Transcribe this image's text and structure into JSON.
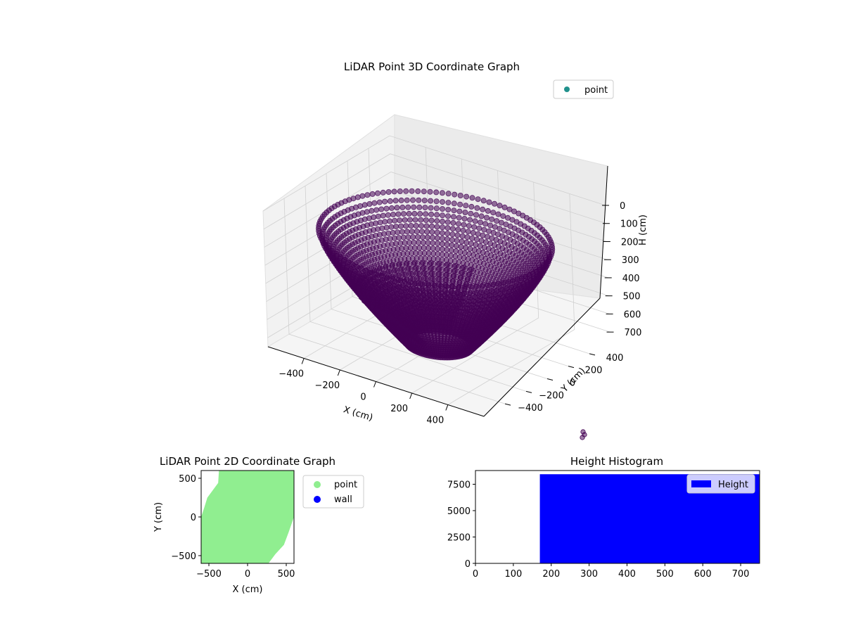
{
  "chart_data": [
    {
      "type": "scatter3d",
      "title": "LiDAR Point 3D Coordinate Graph",
      "xlabel": "X (cm)",
      "ylabel": "Y (cm)",
      "zlabel": "H (cm)",
      "xlim": [
        -600,
        600
      ],
      "ylim": [
        -600,
        600
      ],
      "zlim": [
        0,
        750
      ],
      "z_inverted": true,
      "xticks": [
        "−400",
        "−200",
        "0",
        "200",
        "400"
      ],
      "yticks": [
        "−400",
        "−200",
        "0",
        "200",
        "400"
      ],
      "zticks": [
        "0",
        "100",
        "200",
        "300",
        "400",
        "500",
        "600",
        "700"
      ],
      "grid": true,
      "legend": {
        "position": "upper-right",
        "entries": [
          {
            "label": "point",
            "color": "#21918c"
          }
        ]
      },
      "point_color": "#440154",
      "series": [
        {
          "name": "point",
          "shape": "bowl of arcs",
          "radius_range": [
            160,
            560
          ],
          "height_range": [
            170,
            750
          ]
        }
      ]
    },
    {
      "type": "scatter",
      "title": "LiDAR Point 2D Coordinate Graph",
      "xlabel": "X (cm)",
      "ylabel": "Y (cm)",
      "xlim": [
        -600,
        600
      ],
      "ylim": [
        -600,
        600
      ],
      "xticks": [
        "−500",
        "0",
        "500"
      ],
      "yticks": [
        "−500",
        "0",
        "500"
      ],
      "legend": {
        "position": "outside-right",
        "entries": [
          {
            "label": "point",
            "color": "#90ee90"
          },
          {
            "label": "wall",
            "color": "#0000ff"
          }
        ]
      },
      "region": [
        [
          -370,
          600
        ],
        [
          600,
          600
        ],
        [
          600,
          0
        ],
        [
          530,
          -200
        ],
        [
          470,
          -360
        ],
        [
          360,
          -480
        ],
        [
          270,
          -600
        ],
        [
          -600,
          -600
        ],
        [
          -600,
          0
        ],
        [
          -560,
          120
        ],
        [
          -520,
          250
        ],
        [
          -380,
          440
        ]
      ]
    },
    {
      "type": "bar",
      "title": "Height Histogram",
      "xlim": [
        0,
        750
      ],
      "ylim": [
        0,
        8800
      ],
      "xticks": [
        "0",
        "100",
        "200",
        "300",
        "400",
        "500",
        "600",
        "700"
      ],
      "yticks": [
        "0",
        "2500",
        "5000",
        "7500"
      ],
      "legend": {
        "position": "upper-right",
        "entries": [
          {
            "label": "Height",
            "color": "#0000ff"
          }
        ]
      },
      "bins": [
        {
          "x0": 170,
          "x1": 750,
          "count": 8450
        }
      ]
    }
  ]
}
